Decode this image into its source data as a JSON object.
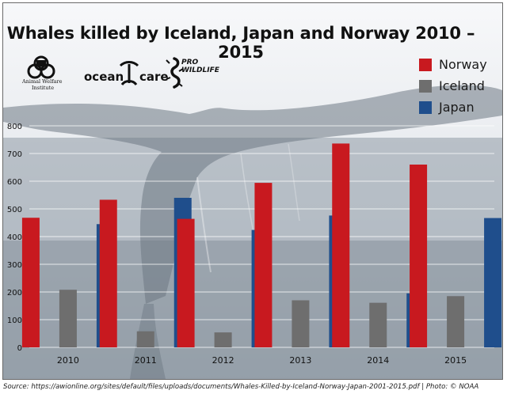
{
  "title": "Whales killed by Iceland, Japan and Norway 2010 – 2015",
  "logos": {
    "awi_line1": "Animal Welfare",
    "awi_line2": "Institute",
    "oceancare_left": "ocean",
    "oceancare_right": "care",
    "prowildlife_line1": "PRO",
    "prowildlife_line2": "WILDLIFE"
  },
  "source": "Source: https://awionline.org/sites/default/files/uploads/documents/Whales-Killed-by-Iceland-Norway-Japan-2001-2015.pdf | Photo: © NOAA",
  "colors": {
    "norway": "#c8191f",
    "iceland": "#6e6e6e",
    "japan": "#1f4e8c"
  },
  "chart_data": {
    "type": "bar",
    "title": "Whales killed by Iceland, Japan and Norway 2010 – 2015",
    "categories": [
      "2010",
      "2011",
      "2012",
      "2013",
      "2014",
      "2015"
    ],
    "series": [
      {
        "name": "Norway",
        "color": "#c8191f",
        "values": [
          468,
          533,
          464,
          594,
          736,
          660
        ]
      },
      {
        "name": "Iceland",
        "color": "#6e6e6e",
        "values": [
          208,
          58,
          54,
          170,
          161,
          185
        ]
      },
      {
        "name": "Japan",
        "color": "#1f4e8c",
        "values": [
          445,
          540,
          424,
          476,
          195,
          467
        ]
      }
    ],
    "xlabel": "",
    "ylabel": "",
    "ylim": [
      0,
      800
    ],
    "yticks": [
      "0",
      "100",
      "200",
      "300",
      "400",
      "500",
      "600",
      "700",
      "800"
    ],
    "grid": true,
    "legend_position": "top-right"
  }
}
